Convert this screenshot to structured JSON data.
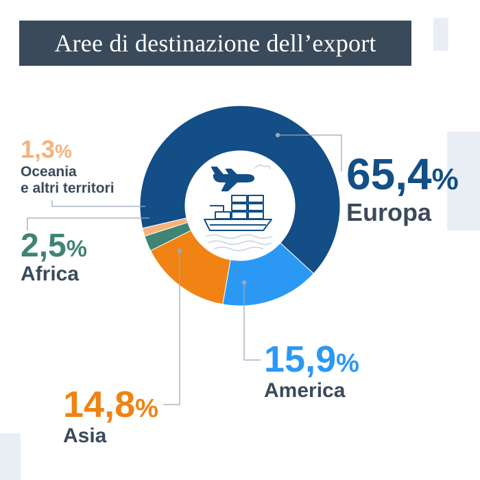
{
  "title": "Aree di destinazione dell’export",
  "chart_data": {
    "type": "pie",
    "donut": true,
    "title": "Aree di destinazione dell’export",
    "unit": "%",
    "slices": [
      {
        "label": "Europa",
        "value": 65.4,
        "value_text": "65,4",
        "color": "#134e86"
      },
      {
        "label": "America",
        "value": 15.9,
        "value_text": "15,9",
        "color": "#2b99f4"
      },
      {
        "label": "Asia",
        "value": 14.8,
        "value_text": "14,8",
        "color": "#f08313"
      },
      {
        "label": "Africa",
        "value": 2.5,
        "value_text": "2,5",
        "color": "#3f8474"
      },
      {
        "label": "Oceania e altri territori",
        "label_lines": [
          "Oceania",
          "e altri territori"
        ],
        "value": 1.3,
        "value_text": "1,3",
        "color": "#f7b27a"
      }
    ]
  },
  "center_icons": [
    "airplane-icon",
    "cargo-ship-icon"
  ],
  "colors": {
    "title_bg": "#3b4a5a",
    "leader_line": "#9aa8ba",
    "label_dark": "#3b4a5a"
  }
}
